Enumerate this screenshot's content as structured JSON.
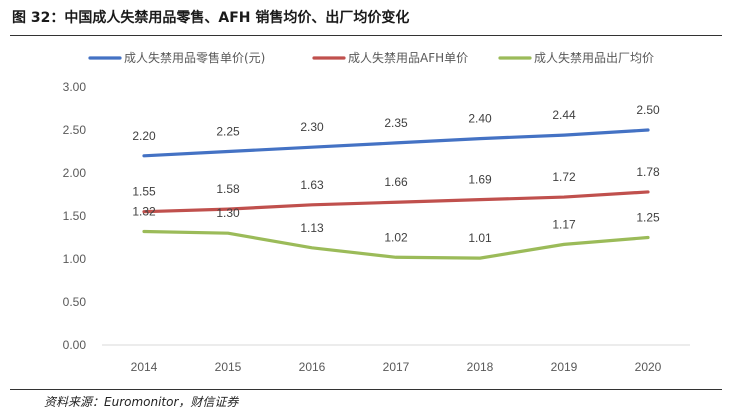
{
  "figure": {
    "title": "图 32：中国成人失禁用品零售、AFH 销售均价、出厂均价变化",
    "source": "资料来源：Euromonitor，财信证券"
  },
  "chart_data": {
    "type": "line",
    "title": "",
    "xlabel": "",
    "ylabel": "",
    "categories": [
      "2014",
      "2015",
      "2016",
      "2017",
      "2018",
      "2019",
      "2020"
    ],
    "ylim": [
      0,
      3
    ],
    "yticks": [
      "0.00",
      "0.50",
      "1.00",
      "1.50",
      "2.00",
      "2.50",
      "3.00"
    ],
    "grid": false,
    "legend_position": "top",
    "series": [
      {
        "name": "成人失禁用品零售单价(元)",
        "color": "#4472C4",
        "values": [
          2.2,
          2.25,
          2.3,
          2.35,
          2.4,
          2.44,
          2.5
        ],
        "labels": [
          "2.20",
          "2.25",
          "2.30",
          "2.35",
          "2.40",
          "2.44",
          "2.50"
        ]
      },
      {
        "name": "成人失禁用品AFH单价",
        "color": "#C0504D",
        "values": [
          1.55,
          1.58,
          1.63,
          1.66,
          1.69,
          1.72,
          1.78
        ],
        "labels": [
          "1.55",
          "1.58",
          "1.63",
          "1.66",
          "1.69",
          "1.72",
          "1.78"
        ]
      },
      {
        "name": "成人失禁用品出厂均价",
        "color": "#9BBB59",
        "values": [
          1.32,
          1.3,
          1.13,
          1.02,
          1.01,
          1.17,
          1.25
        ],
        "labels": [
          "1.32",
          "1.30",
          "1.13",
          "1.02",
          "1.01",
          "1.17",
          "1.25"
        ]
      }
    ]
  }
}
